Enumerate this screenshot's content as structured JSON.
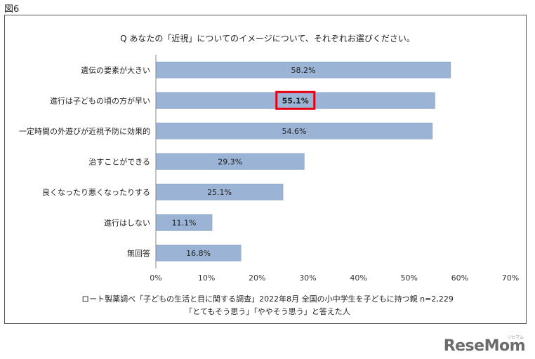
{
  "figure_label": "図6",
  "question": "Q あなたの「近視」についてのイメージについて、それぞれお選びください。",
  "source_line1": "ロート製薬調べ「子どもの生活と目に関する調査」2022年8月  全国の小中学生を子どもに持つ親  n=2,229",
  "source_line2": "「とてもそう思う」「ややそう思う」と答えた人",
  "logo_text": "ReseMom",
  "logo_sub": "リセマム",
  "colors": {
    "bar": "#9bb4d6",
    "bar_edge": "#7f9cc6",
    "highlight": "#e60012",
    "axis": "#888888"
  },
  "chart_data": {
    "type": "bar",
    "orientation": "horizontal",
    "categories": [
      "遺伝の要素が大きい",
      "進行は子どもの頃の方が早い",
      "一定時間の外遊びが近視予防に効果的",
      "治すことができる",
      "良くなったり悪くなったりする",
      "進行はしない",
      "無回答"
    ],
    "values": [
      58.2,
      55.1,
      54.6,
      29.3,
      25.1,
      11.1,
      16.8
    ],
    "value_labels": [
      "58.2%",
      "55.1%",
      "54.6%",
      "29.3%",
      "25.1%",
      "11.1%",
      "16.8%"
    ],
    "highlighted_index": 1,
    "xlim": [
      0,
      70
    ],
    "xticks": [
      0,
      10,
      20,
      30,
      40,
      50,
      60,
      70
    ],
    "xtick_labels": [
      "0%",
      "10%",
      "20%",
      "30%",
      "40%",
      "50%",
      "60%",
      "70%"
    ],
    "grid": false,
    "xlabel": "",
    "ylabel": ""
  }
}
